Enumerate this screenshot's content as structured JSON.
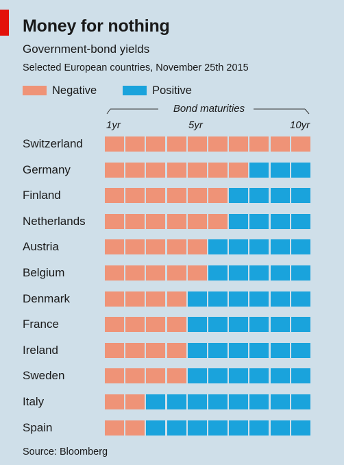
{
  "header": {
    "title": "Money for nothing",
    "subtitle": "Government-bond yields",
    "note": "Selected European countries, November 25th 2015"
  },
  "footer": {
    "source": "Source: Bloomberg"
  },
  "colors": {
    "negative": "#ef9377",
    "positive": "#1aa3dc",
    "accent": "#e3120b",
    "background": "#cfdfe9"
  },
  "chart_data": {
    "type": "heatmap",
    "title": "Money for nothing",
    "subtitle": "Government-bond yields",
    "axis_title": "Bond maturities",
    "tick_labels": [
      "1yr",
      "5yr",
      "10yr"
    ],
    "maturities_years": [
      1,
      2,
      3,
      4,
      5,
      6,
      7,
      8,
      9,
      10
    ],
    "legend": [
      {
        "name": "Negative",
        "color": "#ef9377"
      },
      {
        "name": "Positive",
        "color": "#1aa3dc"
      }
    ],
    "rows": [
      {
        "country": "Switzerland",
        "negative_maturities": 10
      },
      {
        "country": "Germany",
        "negative_maturities": 7
      },
      {
        "country": "Finland",
        "negative_maturities": 6
      },
      {
        "country": "Netherlands",
        "negative_maturities": 6
      },
      {
        "country": "Austria",
        "negative_maturities": 5
      },
      {
        "country": "Belgium",
        "negative_maturities": 5
      },
      {
        "country": "Denmark",
        "negative_maturities": 4
      },
      {
        "country": "France",
        "negative_maturities": 4
      },
      {
        "country": "Ireland",
        "negative_maturities": 4
      },
      {
        "country": "Sweden",
        "negative_maturities": 4
      },
      {
        "country": "Italy",
        "negative_maturities": 2
      },
      {
        "country": "Spain",
        "negative_maturities": 2
      }
    ]
  }
}
